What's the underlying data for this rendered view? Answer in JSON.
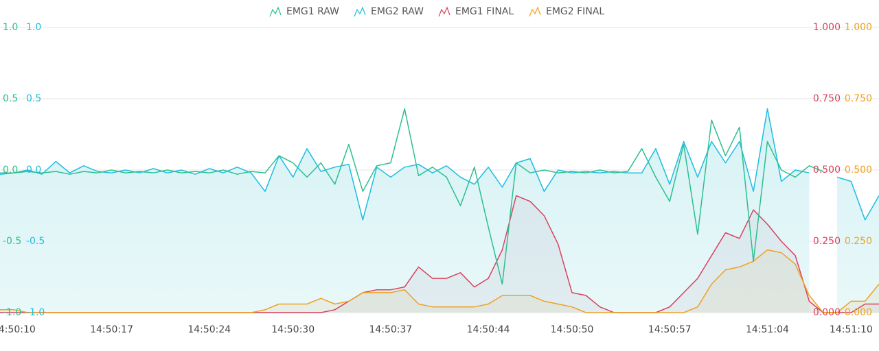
{
  "chart_data": {
    "type": "line",
    "x": [
      9,
      10,
      11,
      12,
      13,
      14,
      15,
      16,
      17,
      18,
      19,
      20,
      21,
      22,
      23,
      24,
      25,
      26,
      27,
      28,
      29,
      30,
      31,
      32,
      33,
      34,
      35,
      36,
      37,
      38,
      39,
      40,
      41,
      42,
      43,
      44,
      45,
      46,
      47,
      48,
      49,
      50,
      51,
      52,
      53,
      54,
      55,
      56,
      57,
      58,
      59,
      60,
      61,
      62,
      63,
      64,
      65,
      66,
      67,
      68,
      69,
      70,
      71,
      72
    ],
    "xlim": [
      9,
      72
    ],
    "xticks": [
      {
        "value": 10,
        "label": "14:50:10"
      },
      {
        "value": 17,
        "label": "14:50:17"
      },
      {
        "value": 24,
        "label": "14:50:24"
      },
      {
        "value": 30,
        "label": "14:50:30"
      },
      {
        "value": 37,
        "label": "14:50:37"
      },
      {
        "value": 44,
        "label": "14:50:44"
      },
      {
        "value": 50,
        "label": "14:50:50"
      },
      {
        "value": 57,
        "label": "14:50:57"
      },
      {
        "value": 64,
        "label": "14:51:04"
      },
      {
        "value": 70,
        "label": "14:51:10"
      }
    ],
    "ylim": [
      -1,
      1
    ],
    "yticks": [
      {
        "value": 1,
        "label": "1.0"
      },
      0.5,
      {
        "value": 0,
        "label": "0.0"
      },
      -0.5,
      {
        "value": -1,
        "label": "-1.0"
      }
    ],
    "y3lim": [
      -1,
      1
    ],
    "y3ticks": [
      {
        "value": 1,
        "label": "1.0"
      },
      0.5,
      {
        "value": 0,
        "label": "0.0"
      },
      -0.5,
      {
        "value": -1,
        "label": "-1.0"
      }
    ],
    "y2lim": [
      0,
      1
    ],
    "y2ticks": [
      {
        "value": 1,
        "label": "1.000"
      },
      {
        "value": 0.75,
        "label": "0.750"
      },
      {
        "value": 0.5,
        "label": "0.500"
      },
      {
        "value": 0.25,
        "label": "0.250"
      },
      {
        "value": 0,
        "label": "0.000"
      }
    ],
    "y4lim": [
      0,
      1
    ],
    "y4ticks": [
      {
        "value": 1,
        "label": "1.000"
      },
      {
        "value": 0.75,
        "label": "0.750"
      },
      {
        "value": 0.5,
        "label": "0.500"
      },
      {
        "value": 0.25,
        "label": "0.250"
      },
      {
        "value": 0,
        "label": "0.000"
      }
    ],
    "grid": true,
    "legend": "top",
    "series": [
      {
        "name": "EMG1 RAW",
        "color": "#2bbf8f",
        "axis": "y",
        "values": [
          -0.02,
          -0.02,
          -0.01,
          -0.02,
          -0.01,
          -0.03,
          -0.01,
          -0.02,
          0.0,
          -0.02,
          -0.01,
          -0.02,
          0.0,
          -0.02,
          -0.01,
          -0.02,
          0.0,
          -0.03,
          -0.01,
          -0.02,
          0.1,
          0.05,
          -0.05,
          0.05,
          -0.1,
          0.18,
          -0.15,
          0.03,
          0.05,
          0.43,
          -0.04,
          0.02,
          -0.05,
          -0.25,
          0.02,
          -0.4,
          -0.8,
          0.05,
          -0.02,
          0.0,
          -0.02,
          -0.01,
          -0.02,
          0.0,
          -0.02,
          -0.01,
          0.15,
          -0.05,
          -0.22,
          0.18,
          -0.45,
          0.35,
          0.1,
          0.3,
          -0.64,
          0.2,
          0.0,
          -0.05,
          0.03,
          -0.01,
          null,
          null,
          null,
          null
        ]
      },
      {
        "name": "EMG2 RAW",
        "color": "#1cbde0",
        "axis": "y3",
        "values": [
          -0.03,
          -0.02,
          0.0,
          -0.03,
          0.06,
          -0.02,
          0.03,
          -0.01,
          -0.02,
          0.0,
          -0.02,
          0.01,
          -0.02,
          0.0,
          -0.03,
          0.01,
          -0.02,
          0.02,
          -0.02,
          -0.15,
          0.1,
          -0.05,
          0.15,
          -0.01,
          0.02,
          0.04,
          -0.35,
          0.02,
          -0.05,
          0.02,
          0.04,
          -0.02,
          0.03,
          -0.05,
          -0.1,
          0.02,
          -0.12,
          0.05,
          0.08,
          -0.15,
          0.0,
          -0.02,
          -0.01,
          -0.02,
          -0.01,
          -0.02,
          -0.02,
          0.15,
          -0.1,
          0.2,
          -0.05,
          0.2,
          0.05,
          0.2,
          -0.15,
          0.43,
          -0.08,
          0.0,
          -0.02,
          null,
          -0.05,
          -0.08,
          -0.35,
          -0.18
        ]
      },
      {
        "name": "EMG1 FINAL",
        "color": "#d9415e",
        "axis": "y2",
        "values": [
          0,
          0,
          0,
          0,
          0,
          0,
          0,
          0,
          0,
          0,
          0,
          0,
          0,
          0,
          0,
          0,
          0,
          0,
          0,
          0,
          0,
          0,
          0,
          0,
          0.01,
          0.04,
          0.07,
          0.08,
          0.08,
          0.09,
          0.16,
          0.12,
          0.12,
          0.14,
          0.09,
          0.12,
          0.22,
          0.41,
          0.39,
          0.34,
          0.24,
          0.07,
          0.06,
          0.02,
          0,
          0,
          0,
          0,
          0.02,
          0.07,
          0.12,
          0.2,
          0.28,
          0.26,
          0.36,
          0.31,
          0.25,
          0.2,
          0.04,
          0,
          0,
          0,
          0.03,
          0.03
        ]
      },
      {
        "name": "EMG2 FINAL",
        "color": "#f0a020",
        "axis": "y4",
        "values": [
          0.01,
          0.01,
          0,
          0,
          0,
          0,
          0,
          0,
          0,
          0,
          0,
          0,
          0,
          0,
          0,
          0,
          0,
          0,
          0,
          0.01,
          0.03,
          0.03,
          0.03,
          0.05,
          0.03,
          0.04,
          0.07,
          0.07,
          0.07,
          0.08,
          0.03,
          0.02,
          0.02,
          0.02,
          0.02,
          0.03,
          0.06,
          0.06,
          0.06,
          0.04,
          0.03,
          0.02,
          0,
          0,
          0,
          0,
          0,
          0,
          0,
          0,
          0.02,
          0.1,
          0.15,
          0.16,
          0.18,
          0.22,
          0.21,
          0.17,
          0.06,
          0,
          0,
          0.04,
          0.04,
          0.1
        ]
      }
    ]
  }
}
